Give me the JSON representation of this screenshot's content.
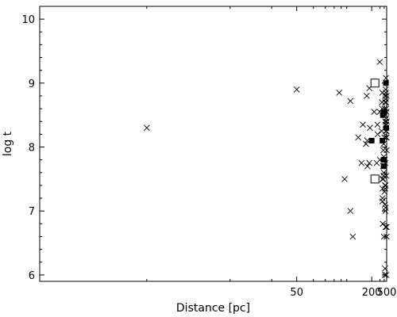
{
  "chart_data": {
    "type": "scatter",
    "title": "",
    "xlabel": "Distance   [pc]",
    "ylabel": "log t",
    "x_scale": "reciprocal",
    "xlim": [
      14,
      500
    ],
    "ylim": [
      5.9,
      10.2
    ],
    "x_ticks": [
      50,
      200,
      500
    ],
    "x_tick_labels": [
      "50",
      "200",
      "500"
    ],
    "y_ticks": [
      6,
      7,
      8,
      9,
      10
    ],
    "y_tick_labels": [
      "6",
      "7",
      "8",
      "9",
      "10"
    ],
    "grid": false,
    "legend": "none",
    "series": [
      {
        "marker": "cross",
        "points": [
          [
            20,
            8.3
          ],
          [
            50,
            8.9
          ],
          [
            87,
            8.85
          ],
          [
            108,
            8.72
          ],
          [
            96,
            7.5
          ],
          [
            108,
            7.0
          ],
          [
            114,
            6.6
          ],
          [
            130,
            8.15
          ],
          [
            142,
            7.75
          ],
          [
            148,
            8.35
          ],
          [
            163,
            8.05
          ],
          [
            167,
            8.8
          ],
          [
            170,
            8.1
          ],
          [
            171,
            7.7
          ],
          [
            183,
            8.92
          ],
          [
            183,
            7.75
          ],
          [
            187,
            8.3
          ],
          [
            222,
            8.55
          ],
          [
            260,
            8.35
          ],
          [
            262,
            8.2
          ],
          [
            250,
            7.75
          ],
          [
            295,
            9.33
          ],
          [
            296,
            8.55
          ],
          [
            299,
            7.8
          ],
          [
            339,
            8.7
          ],
          [
            331,
            8.25
          ],
          [
            345,
            8.6
          ],
          [
            349,
            8.85
          ],
          [
            352,
            7.2
          ],
          [
            350,
            7.15
          ],
          [
            353,
            7.5
          ],
          [
            355,
            7.35
          ],
          [
            360,
            6.8
          ],
          [
            367,
            7.7
          ],
          [
            370,
            7.5
          ],
          [
            383,
            8.05
          ],
          [
            375,
            7.95
          ],
          [
            388,
            7.55
          ],
          [
            387,
            7.6
          ],
          [
            392,
            6.6
          ],
          [
            395,
            8.55
          ],
          [
            409,
            8.6
          ],
          [
            410,
            7.3
          ],
          [
            420,
            7.8
          ],
          [
            421,
            6.0
          ],
          [
            425,
            7.1
          ],
          [
            428,
            7.4
          ],
          [
            428,
            6.1
          ],
          [
            431,
            8.8
          ],
          [
            435,
            8.7
          ],
          [
            438,
            8.4
          ],
          [
            440,
            8.5
          ],
          [
            439,
            7.75
          ],
          [
            437,
            7.35
          ],
          [
            441,
            7.0
          ],
          [
            443,
            8.35
          ],
          [
            446,
            7.4
          ],
          [
            450,
            6.75
          ],
          [
            452,
            7.05
          ],
          [
            455,
            8.9
          ],
          [
            458,
            8.75
          ],
          [
            461,
            8.85
          ],
          [
            460,
            8.25
          ],
          [
            466,
            9.08
          ],
          [
            471,
            8.7
          ],
          [
            474,
            8.45
          ],
          [
            476,
            8.6
          ],
          [
            479,
            8.35
          ],
          [
            485,
            7.55
          ],
          [
            490,
            8.25
          ],
          [
            493,
            8.55
          ],
          [
            496,
            8.8
          ],
          [
            498,
            8.15
          ],
          [
            499,
            7.95
          ],
          [
            500,
            8.4
          ],
          [
            495,
            6.75
          ],
          [
            499,
            6.6
          ],
          [
            480,
            6.0
          ],
          [
            472,
            8.15
          ],
          [
            407,
            8.15
          ],
          [
            388,
            7.85
          ],
          [
            383,
            7.55
          ]
        ]
      },
      {
        "marker": "filled-square",
        "points": [
          [
            200,
            8.1
          ],
          [
            361,
            8.5
          ],
          [
            352,
            8.1
          ],
          [
            378,
            7.8
          ],
          [
            383,
            7.7
          ],
          [
            392,
            8.55
          ],
          [
            466,
            9.0
          ],
          [
            483,
            8.3
          ]
        ]
      },
      {
        "marker": "open-square",
        "points": [
          [
            230,
            9.0
          ],
          [
            230,
            7.5
          ]
        ]
      }
    ]
  }
}
